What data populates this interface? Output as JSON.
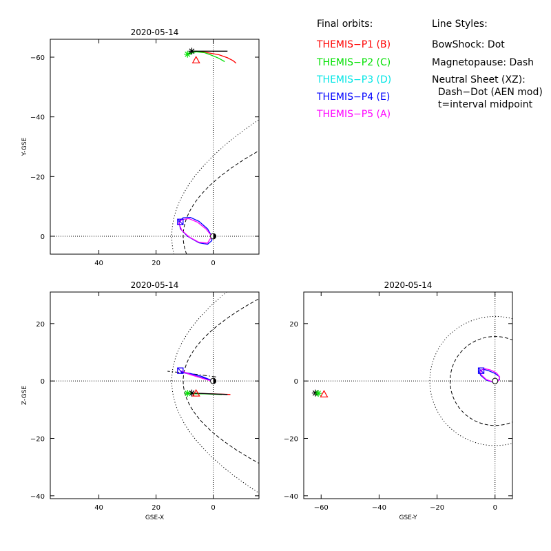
{
  "legend": {
    "orbits_title": "Final orbits:",
    "probes": [
      {
        "label": "THEMIS−P1 (B)",
        "color": "#ff0000"
      },
      {
        "label": "THEMIS−P2 (C)",
        "color": "#00e000"
      },
      {
        "label": "THEMIS−P3 (D)",
        "color": "#00e5e5"
      },
      {
        "label": "THEMIS−P4 (E)",
        "color": "#0000ff"
      },
      {
        "label": "THEMIS−P5 (A)",
        "color": "#ff00ff"
      }
    ],
    "styles_title": "Line Styles:",
    "styles": [
      "BowShock: Dot",
      "Magnetopause: Dash",
      "Neutral Sheet (XZ):",
      "  Dash−Dot (AEN mod)",
      "  t=interval midpoint"
    ]
  },
  "chart_data": [
    {
      "type": "line",
      "title": "2020-05-14",
      "xlabel": "",
      "ylabel": "Y-GSE",
      "xlim": [
        57,
        -16
      ],
      "ylim": [
        6,
        -66
      ],
      "xticks": [
        40,
        20,
        0
      ],
      "yticks": [
        -60,
        -40,
        -20,
        0
      ],
      "series": [
        {
          "name": "THEMIS-P1 (B)",
          "color": "#ff0000",
          "points": [
            [
              6,
              -62
            ],
            [
              2,
              -61.5
            ],
            [
              -2,
              -60.8
            ],
            [
              -5,
              -59.8
            ],
            [
              -7,
              -58.8
            ],
            [
              -8,
              -58
            ]
          ]
        },
        {
          "name": "THEMIS-P2 (C)",
          "color": "#00e000",
          "points": [
            [
              9,
              -61
            ],
            [
              6,
              -61.8
            ],
            [
              3,
              -61.5
            ],
            [
              1,
              -60.8
            ],
            [
              -2,
              -59.6
            ],
            [
              -4,
              -58.5
            ]
          ]
        },
        {
          "name": "THEMIS-P4 orbit (E)",
          "color": "#0000ff",
          "points": [
            [
              0.5,
              0
            ],
            [
              2,
              -2.5
            ],
            [
              5,
              -5
            ],
            [
              8,
              -6.3
            ],
            [
              10.5,
              -6.2
            ],
            [
              12,
              -5
            ],
            [
              11.5,
              -2.5
            ],
            [
              9,
              0
            ],
            [
              5,
              2.2
            ],
            [
              2,
              2.7
            ],
            [
              0.5,
              1.5
            ],
            [
              0.5,
              0
            ]
          ]
        },
        {
          "name": "THEMIS-P3/P5 orbit (D/A)",
          "color": "#ff00ff",
          "points": [
            [
              0.5,
              0
            ],
            [
              2.5,
              -2.4
            ],
            [
              5.5,
              -4.7
            ],
            [
              8.5,
              -5.9
            ],
            [
              11,
              -5.6
            ],
            [
              12,
              -4.3
            ],
            [
              11,
              -2
            ],
            [
              8.5,
              0.2
            ],
            [
              5,
              2
            ],
            [
              2,
              2.3
            ],
            [
              0.5,
              0
            ]
          ]
        },
        {
          "name": "line-black",
          "color": "#000000",
          "points": [
            [
              7.5,
              -62
            ],
            [
              -5,
              -62
            ]
          ]
        }
      ],
      "markers": [
        {
          "x": 7.5,
          "y": -62,
          "shape": "star",
          "color": "#000000"
        },
        {
          "x": 9,
          "y": -61,
          "shape": "star",
          "color": "#00e000"
        },
        {
          "x": 6,
          "y": -59,
          "shape": "triangle",
          "color": "#ff0000"
        },
        {
          "x": 11.5,
          "y": -4.8,
          "shape": "square",
          "color": "#ff00ff"
        },
        {
          "x": 11.5,
          "y": -4.8,
          "shape": "square",
          "color": "#0000ff"
        }
      ],
      "boundaries": [
        {
          "name": "bow-shock",
          "style": "dot",
          "x0": 14.5,
          "wy": 25,
          "wyy": 7
        },
        {
          "name": "magnetopause",
          "style": "dash",
          "x0": 10.5,
          "wy": 15.5,
          "wyy": 5
        }
      ],
      "earth": {
        "x": 0,
        "y": 0,
        "r": 1
      }
    },
    {
      "type": "line",
      "title": "2020-05-14",
      "xlabel": "GSE-X",
      "ylabel": "Z-GSE",
      "xlim": [
        57,
        -16
      ],
      "ylim": [
        -41,
        31
      ],
      "xticks": [
        40,
        20,
        0
      ],
      "yticks": [
        -40,
        -20,
        0,
        20
      ],
      "series": [
        {
          "name": "THEMIS-P1 (B)",
          "color": "#ff0000",
          "points": [
            [
              6,
              -4.3
            ],
            [
              3,
              -4.4
            ],
            [
              0,
              -4.5
            ],
            [
              -3,
              -4.6
            ],
            [
              -6,
              -4.7
            ]
          ]
        },
        {
          "name": "THEMIS-P2 (C)",
          "color": "#00e000",
          "points": [
            [
              9,
              -4.3
            ],
            [
              6,
              -4.5
            ],
            [
              3,
              -4.5
            ],
            [
              0,
              -4.6
            ],
            [
              -3,
              -4.7
            ]
          ]
        },
        {
          "name": "line-black",
          "color": "#000000",
          "points": [
            [
              7.5,
              -4.2
            ],
            [
              -5,
              -4.7
            ]
          ]
        },
        {
          "name": "THEMIS-P4 orbit (E)",
          "color": "#0000ff",
          "points": [
            [
              0.5,
              0.2
            ],
            [
              4,
              1.2
            ],
            [
              8,
              2.3
            ],
            [
              11.5,
              3.2
            ],
            [
              8,
              2.6
            ],
            [
              4,
              1.6
            ],
            [
              0.5,
              0.2
            ]
          ]
        },
        {
          "name": "THEMIS-P3/P5 orbit (D/A)",
          "color": "#ff00ff",
          "points": [
            [
              0.5,
              0
            ],
            [
              4,
              1
            ],
            [
              8,
              2.3
            ],
            [
              11.5,
              3.6
            ],
            [
              8,
              2.2
            ],
            [
              4,
              1
            ],
            [
              0.5,
              0
            ]
          ]
        }
      ],
      "markers": [
        {
          "x": 7.5,
          "y": -4.2,
          "shape": "star",
          "color": "#000000"
        },
        {
          "x": 9,
          "y": -4.3,
          "shape": "star",
          "color": "#00e000"
        },
        {
          "x": 6,
          "y": -4.3,
          "shape": "triangle",
          "color": "#ff0000"
        },
        {
          "x": 11.5,
          "y": 3.6,
          "shape": "square",
          "color": "#ff00ff"
        },
        {
          "x": 11.5,
          "y": 3.6,
          "shape": "square",
          "color": "#0000ff"
        }
      ],
      "boundaries": [
        {
          "name": "bow-shock",
          "style": "dot",
          "x0": 14.5,
          "wy": 25,
          "wyy": 7
        },
        {
          "name": "magnetopause",
          "style": "dash",
          "x0": 10.5,
          "wy": 15.5,
          "wyy": 5
        }
      ],
      "neutral_sheet": {
        "points": [
          [
            -1,
            1.4
          ],
          [
            5,
            2.2
          ],
          [
            11,
            2.9
          ],
          [
            16,
            3.4
          ]
        ]
      },
      "earth": {
        "x": 0,
        "y": 0,
        "r": 1
      }
    },
    {
      "type": "line",
      "title": "2020-05-14",
      "xlabel": "GSE-Y",
      "ylabel": "",
      "xlim": [
        -66,
        6
      ],
      "ylim": [
        -41,
        31
      ],
      "xticks": [
        -60,
        -40,
        -20,
        0
      ],
      "yticks": [
        -40,
        -20,
        0,
        20
      ],
      "series": [
        {
          "name": "THEMIS-P4 orbit (E)",
          "color": "#0000ff",
          "points": [
            [
              0.5,
              0.2
            ],
            [
              -1,
              -0.3
            ],
            [
              -3,
              0.3
            ],
            [
              -5,
              2
            ],
            [
              -5.5,
              3.5
            ],
            [
              -4,
              4.1
            ],
            [
              -2,
              3.5
            ],
            [
              0,
              2.6
            ],
            [
              1.5,
              1.5
            ],
            [
              1.5,
              0.4
            ],
            [
              0.5,
              0.2
            ]
          ]
        },
        {
          "name": "THEMIS-P3/P5 orbit (D/A)",
          "color": "#ff00ff",
          "points": [
            [
              0.5,
              0
            ],
            [
              -1,
              -0.2
            ],
            [
              -3,
              0.5
            ],
            [
              -4.8,
              2.2
            ],
            [
              -5,
              3.6
            ],
            [
              -3.5,
              4.3
            ],
            [
              -1.5,
              3.8
            ],
            [
              0.5,
              2.8
            ],
            [
              1.6,
              1.4
            ],
            [
              1.3,
              0.2
            ],
            [
              0.5,
              0
            ]
          ]
        },
        {
          "name": "line-black",
          "color": "#000000",
          "points": [
            [
              -62,
              -4.2
            ],
            [
              -61.5,
              -4.4
            ]
          ]
        }
      ],
      "markers": [
        {
          "x": -62,
          "y": -4.2,
          "shape": "star",
          "color": "#000000"
        },
        {
          "x": -61,
          "y": -4.3,
          "shape": "star",
          "color": "#00e000"
        },
        {
          "x": -59,
          "y": -4.6,
          "shape": "triangle",
          "color": "#ff0000"
        },
        {
          "x": -4.8,
          "y": 3.6,
          "shape": "square",
          "color": "#ff00ff"
        },
        {
          "x": -4.8,
          "y": 3.6,
          "shape": "square",
          "color": "#0000ff"
        }
      ],
      "circles": [
        {
          "name": "bow-shock",
          "style": "dot",
          "r": 22.5
        },
        {
          "name": "magnetopause",
          "style": "dash",
          "r": 15.5
        }
      ],
      "earth": {
        "x": 0,
        "y": 0,
        "r": 1
      }
    }
  ]
}
